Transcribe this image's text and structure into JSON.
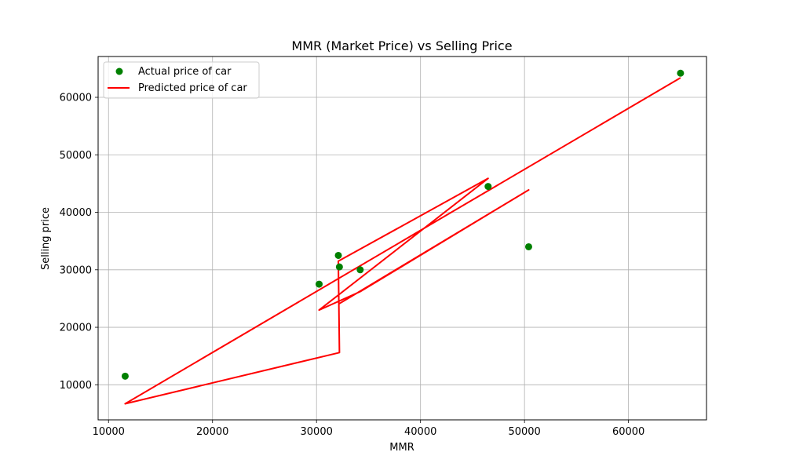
{
  "chart_data": {
    "type": "scatter",
    "title": "MMR (Market Price) vs Selling Price",
    "xlabel": "MMR",
    "ylabel": "Selling price",
    "xlim": [
      9000,
      67500
    ],
    "ylim": [
      3900,
      67100
    ],
    "xticks": [
      10000,
      20000,
      30000,
      40000,
      50000,
      60000
    ],
    "yticks": [
      10000,
      20000,
      30000,
      40000,
      50000,
      60000
    ],
    "grid": true,
    "legend_position": "top-left",
    "series": [
      {
        "name": "Actual price of car",
        "kind": "scatter",
        "color": "#008000",
        "points": [
          {
            "x": 11600,
            "y": 11500
          },
          {
            "x": 30250,
            "y": 27500
          },
          {
            "x": 32100,
            "y": 32500
          },
          {
            "x": 32200,
            "y": 30500
          },
          {
            "x": 34200,
            "y": 30000
          },
          {
            "x": 46500,
            "y": 44500
          },
          {
            "x": 50400,
            "y": 34000
          },
          {
            "x": 65000,
            "y": 64200
          }
        ]
      },
      {
        "name": "Predicted price of car",
        "kind": "line",
        "color": "#ff0000",
        "points": [
          {
            "x": 65000,
            "y": 63400
          },
          {
            "x": 11600,
            "y": 6700
          },
          {
            "x": 32200,
            "y": 15600
          },
          {
            "x": 32100,
            "y": 31500
          },
          {
            "x": 46500,
            "y": 45900
          },
          {
            "x": 30250,
            "y": 23000
          },
          {
            "x": 34200,
            "y": 26200
          },
          {
            "x": 50400,
            "y": 43900
          },
          {
            "x": 32100,
            "y": 24000
          }
        ]
      }
    ]
  }
}
